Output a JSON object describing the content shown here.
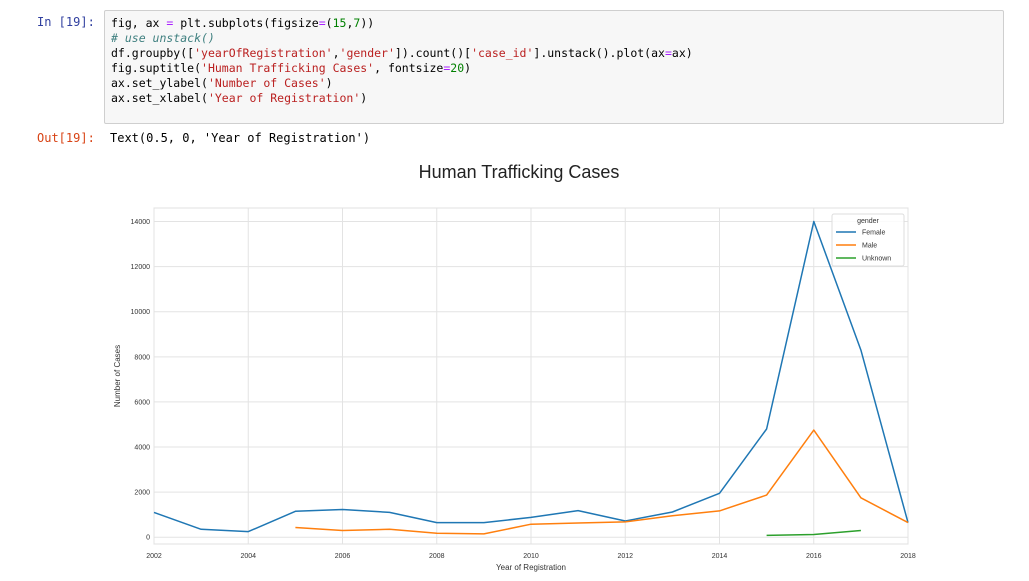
{
  "notebook": {
    "in_prompt": "In [19]:",
    "out_prompt": "Out[19]:",
    "output_text": "Text(0.5, 0, 'Year of Registration')",
    "code": [
      [
        {
          "t": "fig, ax ",
          "c": ""
        },
        {
          "t": "=",
          "c": "op"
        },
        {
          "t": " plt.subplots(figsize",
          "c": ""
        },
        {
          "t": "=",
          "c": "op"
        },
        {
          "t": "(",
          "c": ""
        },
        {
          "t": "15",
          "c": "num"
        },
        {
          "t": ",",
          "c": ""
        },
        {
          "t": "7",
          "c": "num"
        },
        {
          "t": "))",
          "c": ""
        }
      ],
      [
        {
          "t": "# use unstack()",
          "c": "cmt"
        }
      ],
      [
        {
          "t": "df.groupby([",
          "c": ""
        },
        {
          "t": "'yearOfRegistration'",
          "c": "str"
        },
        {
          "t": ",",
          "c": ""
        },
        {
          "t": "'gender'",
          "c": "str"
        },
        {
          "t": "]).count()[",
          "c": ""
        },
        {
          "t": "'case_id'",
          "c": "str"
        },
        {
          "t": "].unstack().plot(ax",
          "c": ""
        },
        {
          "t": "=",
          "c": "op"
        },
        {
          "t": "ax)",
          "c": ""
        }
      ],
      [
        {
          "t": "fig.suptitle(",
          "c": ""
        },
        {
          "t": "'Human Trafficking Cases'",
          "c": "str"
        },
        {
          "t": ", fontsize",
          "c": ""
        },
        {
          "t": "=",
          "c": "op"
        },
        {
          "t": "20",
          "c": "num"
        },
        {
          "t": ")",
          "c": ""
        }
      ],
      [
        {
          "t": "ax.set_ylabel(",
          "c": ""
        },
        {
          "t": "'Number of Cases'",
          "c": "str"
        },
        {
          "t": ")",
          "c": ""
        }
      ],
      [
        {
          "t": "ax.set_xlabel(",
          "c": ""
        },
        {
          "t": "'Year of Registration'",
          "c": "str"
        },
        {
          "t": ")",
          "c": ""
        }
      ]
    ]
  },
  "chart_data": {
    "type": "line",
    "title": "Human Trafficking Cases",
    "xlabel": "Year of Registration",
    "ylabel": "Number of Cases",
    "xlim": [
      2002,
      2018
    ],
    "ylim": [
      -300,
      14600
    ],
    "xticks": [
      2002,
      2004,
      2006,
      2008,
      2010,
      2012,
      2014,
      2016,
      2018
    ],
    "yticks": [
      0,
      2000,
      4000,
      6000,
      8000,
      10000,
      12000,
      14000
    ],
    "grid": true,
    "legend": {
      "title": "gender",
      "placement": "top-right"
    },
    "series": [
      {
        "name": "Female",
        "color": "#1f77b4",
        "x": [
          2002,
          2003,
          2004,
          2005,
          2006,
          2007,
          2008,
          2009,
          2010,
          2011,
          2012,
          2013,
          2014,
          2015,
          2016,
          2017,
          2018
        ],
        "y": [
          1100,
          350,
          250,
          1150,
          1230,
          1100,
          650,
          650,
          880,
          1180,
          720,
          1120,
          1950,
          4800,
          14000,
          8300,
          650
        ]
      },
      {
        "name": "Male",
        "color": "#ff7f0e",
        "x": [
          2005,
          2006,
          2007,
          2008,
          2009,
          2010,
          2011,
          2012,
          2013,
          2014,
          2015,
          2016,
          2017,
          2018
        ],
        "y": [
          430,
          300,
          350,
          180,
          150,
          580,
          630,
          680,
          950,
          1170,
          1870,
          4750,
          1750,
          650
        ]
      },
      {
        "name": "Unknown",
        "color": "#2ca02c",
        "x": [
          2015,
          2016,
          2017
        ],
        "y": [
          80,
          120,
          300
        ]
      }
    ]
  }
}
